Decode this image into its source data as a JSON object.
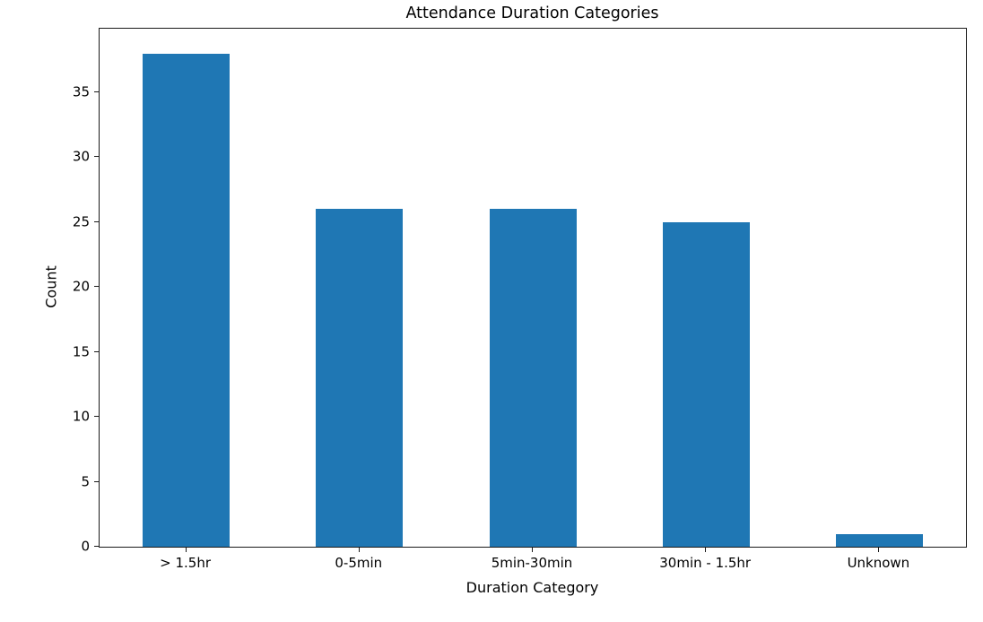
{
  "chart_data": {
    "type": "bar",
    "title": "Attendance Duration Categories",
    "xlabel": "Duration Category",
    "ylabel": "Count",
    "categories": [
      "> 1.5hr",
      "0-5min",
      "5min-30min",
      "30min - 1.5hr",
      "Unknown"
    ],
    "values": [
      38,
      26,
      26,
      25,
      1
    ],
    "yticks": [
      0,
      5,
      10,
      15,
      20,
      25,
      30,
      35
    ],
    "ylim": [
      0,
      39.9
    ],
    "grid": false,
    "legend": "none",
    "colors": {
      "bar": "#1f77b4",
      "background": "#ffffff",
      "text": "#000000",
      "axis": "#1a1a1a"
    }
  }
}
